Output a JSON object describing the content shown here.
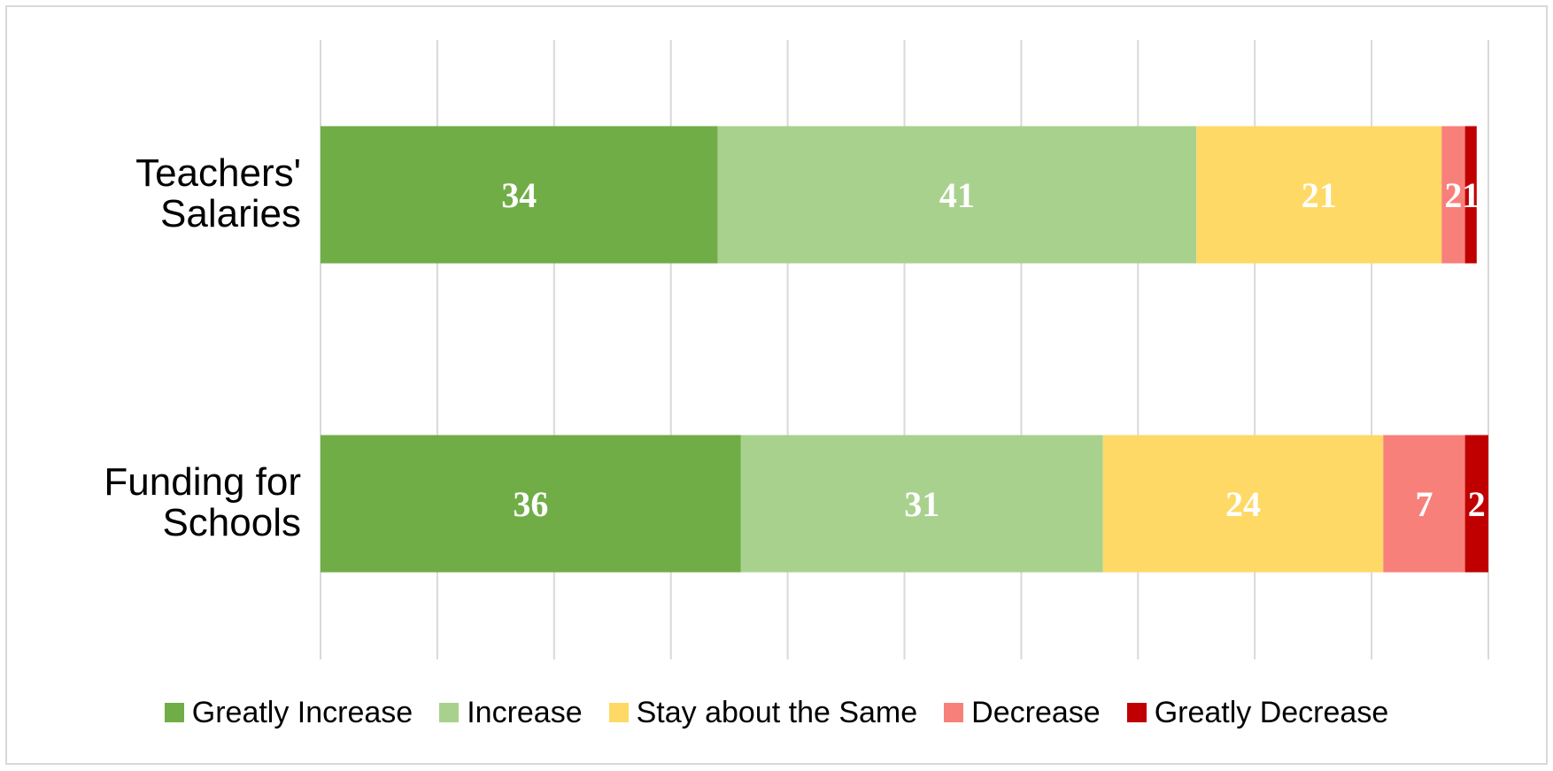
{
  "chart_data": {
    "type": "bar",
    "orientation": "horizontal",
    "stacked": true,
    "categories": [
      "Teachers' Salaries",
      "Funding for Schools"
    ],
    "category_label_lines": [
      [
        "Teachers'",
        "Salaries"
      ],
      [
        "Funding  for",
        "Schools"
      ]
    ],
    "series": [
      {
        "name": "Greatly Increase",
        "color": "#70ad47",
        "values": [
          34,
          36
        ]
      },
      {
        "name": "Increase",
        "color": "#a9d18e",
        "values": [
          41,
          31
        ]
      },
      {
        "name": "Stay about the Same",
        "color": "#ffd966",
        "values": [
          21,
          24
        ]
      },
      {
        "name": "Decrease",
        "color": "#f8807a",
        "values": [
          2,
          7
        ]
      },
      {
        "name": "Greatly Decrease",
        "color": "#c00000",
        "values": [
          1,
          2
        ]
      }
    ],
    "xlim": [
      0,
      100
    ],
    "grid": true,
    "legend_position": "bottom",
    "data_labels": true
  }
}
